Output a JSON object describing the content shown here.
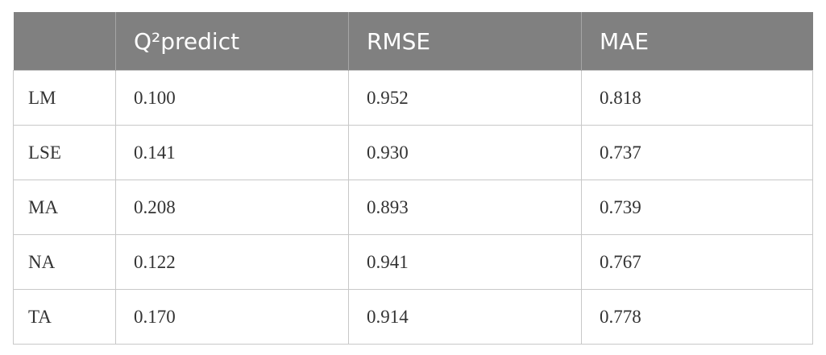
{
  "table": {
    "header": [
      "Q²predict",
      "RMSE",
      "MAE"
    ],
    "rows": [
      [
        "LM",
        "0.100",
        "0.952",
        "0.818"
      ],
      [
        "LSE",
        "0.141",
        "0.930",
        "0.737"
      ],
      [
        "MA",
        "0.208",
        "0.893",
        "0.739"
      ],
      [
        "NA",
        "0.122",
        "0.941",
        "0.767"
      ],
      [
        "TA",
        "0.170",
        "0.914",
        "0.778"
      ]
    ]
  }
}
